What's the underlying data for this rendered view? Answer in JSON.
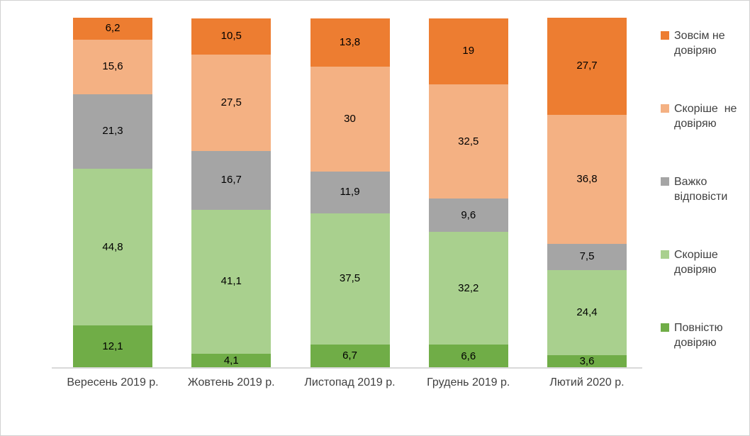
{
  "chart_data": {
    "type": "bar",
    "stacked": true,
    "orientation": "vertical",
    "units": "percent",
    "decimal_separator": ",",
    "title": "",
    "xlabel": "",
    "ylabel": "",
    "ylim": [
      0,
      100
    ],
    "gridlines": false,
    "y_axis_visible": false,
    "legend_position": "right",
    "legend_order": "reverse-of-stack",
    "axis_line_color": "#d9d9d9",
    "axis_label_color": "#404040",
    "data_label_color": "#000000",
    "categories": [
      "Вересень 2019 р.",
      "Жовтень 2019 р.",
      "Листопад 2019 р.",
      "Грудень 2019 р.",
      "Лютий 2020 р."
    ],
    "series": [
      {
        "name": "Повністю довіряю",
        "color": "#70AD47",
        "values": [
          12.1,
          4.1,
          6.7,
          6.6,
          3.6
        ]
      },
      {
        "name": "Скоріше довіряю",
        "color": "#A9D08E",
        "values": [
          44.8,
          41.1,
          37.5,
          32.2,
          24.4
        ]
      },
      {
        "name": "Важко відповісти",
        "color": "#A5A5A5",
        "values": [
          21.3,
          16.7,
          11.9,
          9.6,
          7.5
        ]
      },
      {
        "name": "Скоріше  не довіряю",
        "color": "#F4B183",
        "values": [
          15.6,
          27.5,
          30,
          32.5,
          36.8
        ]
      },
      {
        "name": "Зовсім не довіряю",
        "color": "#ED7D31",
        "values": [
          6.2,
          10.5,
          13.8,
          19,
          27.7
        ]
      }
    ]
  }
}
